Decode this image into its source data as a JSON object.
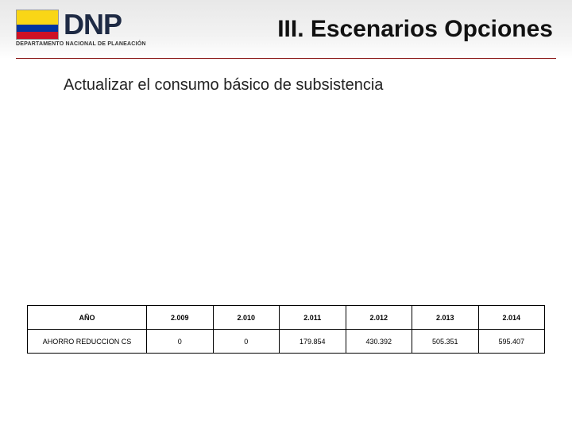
{
  "logo": {
    "acronym": "DNP",
    "subtitle": "DEPARTAMENTO NACIONAL DE PLANEACIÓN",
    "flag_colors": {
      "top": "#f9d616",
      "middle": "#0033a0",
      "bottom": "#ce1126"
    }
  },
  "title": "III. Escenarios Opciones",
  "subtitle": "Actualizar el consumo básico de subsistencia",
  "table": {
    "header_label": "AÑO",
    "row_label": "AHORRO REDUCCION CS",
    "columns": [
      "2.009",
      "2.010",
      "2.011",
      "2.012",
      "2.013",
      "2.014"
    ],
    "values": [
      "0",
      "0",
      "179.854",
      "430.392",
      "505.351",
      "595.407"
    ],
    "border_color": "#000000",
    "font_size_pt": 7
  },
  "colors": {
    "header_band_start": "#e8e8e8",
    "header_band_end": "#ffffff",
    "rule": "#8b1818",
    "background": "#ffffff"
  }
}
